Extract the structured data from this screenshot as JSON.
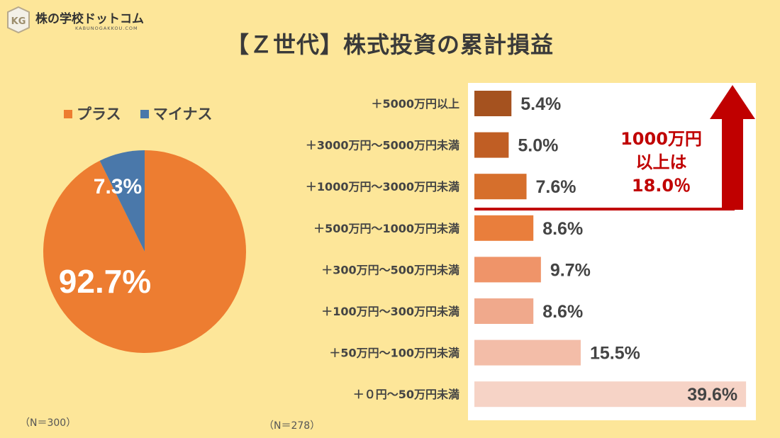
{
  "logo": {
    "badge_text": "KG",
    "name": "株の学校ドットコム",
    "sub": "KABUNOGAKKOU.COM"
  },
  "title": "【Ｚ世代】株式投資の累計損益",
  "legend": [
    {
      "label": "プラス",
      "color": "#ed7d31"
    },
    {
      "label": "マイナス",
      "color": "#4a78aa"
    }
  ],
  "pie_chart": {
    "sample": "（N＝300）"
  },
  "bar_chart": {
    "sample": "（N＝278）",
    "annotation": [
      "1000万円",
      "以上は",
      "18.0％"
    ]
  },
  "chart_data": [
    {
      "type": "pie",
      "categories": [
        "プラス",
        "マイナス"
      ],
      "values": [
        92.7,
        7.3
      ],
      "labels": [
        "92.7%",
        "7.3%"
      ],
      "colors": [
        "#ed7d31",
        "#4a78aa"
      ]
    },
    {
      "type": "bar",
      "orientation": "horizontal",
      "categories": [
        "＋5000万円以上",
        "＋3000万円～5000万円未満",
        "＋1000万円～3000万円未満",
        "＋500万円～1000万円未満",
        "＋300万円～500万円未満",
        "＋100万円～300万円未満",
        "＋50万円～100万円未満",
        "＋０円～50万円未満"
      ],
      "values": [
        5.4,
        5.0,
        7.6,
        8.6,
        9.7,
        8.6,
        15.5,
        39.6
      ],
      "labels": [
        "5.4%",
        "5.0%",
        "7.6%",
        "8.6%",
        "9.7%",
        "8.6%",
        "15.5%",
        "39.6%"
      ],
      "colors": [
        "#a5521f",
        "#c05e24",
        "#d66f2c",
        "#e97e3c",
        "#ef9469",
        "#f0a98c",
        "#f3bda8",
        "#f6d3c6"
      ],
      "xlim": [
        0,
        40
      ]
    }
  ]
}
